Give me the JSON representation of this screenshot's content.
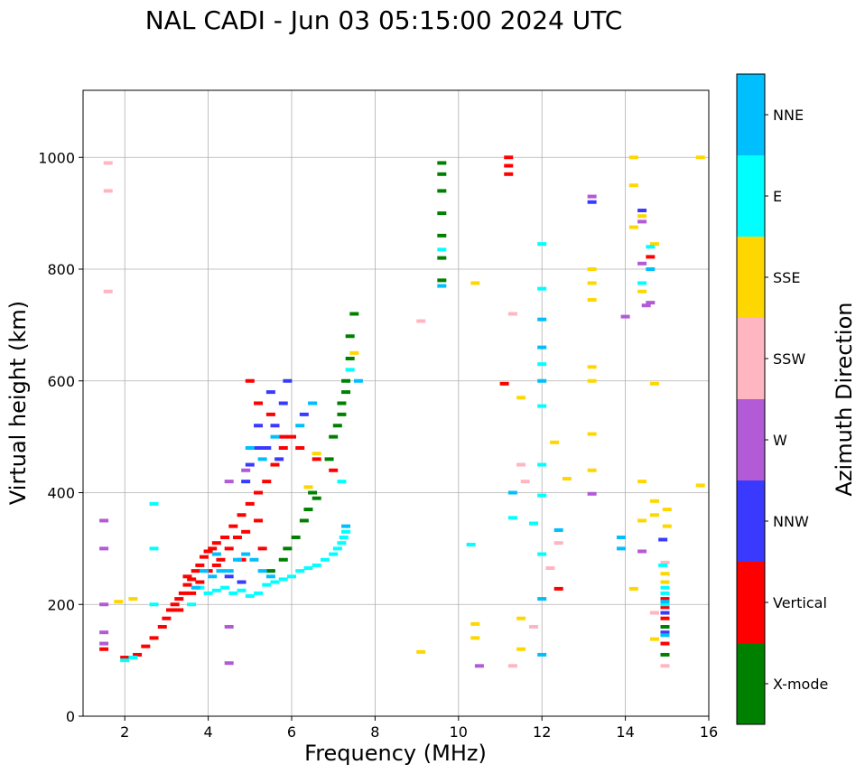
{
  "chart_data": {
    "type": "scatter",
    "title": "NAL CADI - Jun 03 05:15:00 2024 UTC",
    "xlabel": "Frequency (MHz)",
    "ylabel": "Virtual height (km)",
    "xlim": [
      1,
      16
    ],
    "ylim": [
      0,
      1120
    ],
    "xticks": [
      2,
      4,
      6,
      8,
      10,
      12,
      14,
      16
    ],
    "yticks": [
      0,
      200,
      400,
      600,
      800,
      1000
    ],
    "grid": true,
    "colorbar": {
      "label": "Azimuth Direction",
      "categories": [
        {
          "name": "X-mode",
          "color": "#008000"
        },
        {
          "name": "Vertical",
          "color": "#ff0000"
        },
        {
          "name": "NNW",
          "color": "#3a3aff"
        },
        {
          "name": "W",
          "color": "#b35ad6"
        },
        {
          "name": "SSW",
          "color": "#ffb6c1"
        },
        {
          "name": "SSE",
          "color": "#ffd700"
        },
        {
          "name": "E",
          "color": "#00ffff"
        },
        {
          "name": "NNE",
          "color": "#00bfff"
        }
      ]
    },
    "series": [
      {
        "name": "X-mode",
        "points": [
          [
            5.9,
            300
          ],
          [
            6.1,
            320
          ],
          [
            6.3,
            350
          ],
          [
            6.4,
            370
          ],
          [
            6.6,
            390
          ],
          [
            6.9,
            460
          ],
          [
            7.0,
            500
          ],
          [
            7.1,
            520
          ],
          [
            7.2,
            560
          ],
          [
            7.3,
            600
          ],
          [
            7.4,
            640
          ],
          [
            7.4,
            680
          ],
          [
            7.5,
            720
          ],
          [
            5.5,
            260
          ],
          [
            5.8,
            280
          ],
          [
            6.5,
            400
          ],
          [
            7.2,
            540
          ],
          [
            7.3,
            580
          ],
          [
            9.6,
            780
          ],
          [
            9.6,
            820
          ],
          [
            9.6,
            860
          ],
          [
            9.6,
            900
          ],
          [
            9.6,
            940
          ],
          [
            9.6,
            970
          ],
          [
            9.6,
            990
          ],
          [
            14.95,
            110
          ],
          [
            14.95,
            160
          ]
        ]
      },
      {
        "name": "Vertical",
        "points": [
          [
            2.3,
            110
          ],
          [
            2.5,
            125
          ],
          [
            2.7,
            140
          ],
          [
            2.9,
            160
          ],
          [
            3.0,
            175
          ],
          [
            3.1,
            190
          ],
          [
            3.2,
            200
          ],
          [
            3.3,
            210
          ],
          [
            3.4,
            220
          ],
          [
            3.5,
            235
          ],
          [
            3.6,
            245
          ],
          [
            3.7,
            260
          ],
          [
            3.8,
            270
          ],
          [
            3.9,
            285
          ],
          [
            4.0,
            295
          ],
          [
            4.1,
            300
          ],
          [
            4.2,
            310
          ],
          [
            4.4,
            320
          ],
          [
            4.6,
            340
          ],
          [
            4.8,
            360
          ],
          [
            5.0,
            380
          ],
          [
            5.2,
            400
          ],
          [
            5.4,
            420
          ],
          [
            5.6,
            450
          ],
          [
            5.8,
            480
          ],
          [
            6.0,
            500
          ],
          [
            3.3,
            190
          ],
          [
            3.6,
            220
          ],
          [
            3.8,
            240
          ],
          [
            4.0,
            260
          ],
          [
            4.3,
            280
          ],
          [
            4.5,
            300
          ],
          [
            4.7,
            320
          ],
          [
            4.9,
            330
          ],
          [
            5.2,
            350
          ],
          [
            5.0,
            600
          ],
          [
            5.2,
            560
          ],
          [
            5.5,
            540
          ],
          [
            5.8,
            500
          ],
          [
            6.2,
            480
          ],
          [
            6.6,
            460
          ],
          [
            7.0,
            440
          ],
          [
            3.5,
            250
          ],
          [
            4.2,
            270
          ],
          [
            4.8,
            280
          ],
          [
            5.3,
            300
          ],
          [
            11.2,
            985
          ],
          [
            11.2,
            970
          ],
          [
            11.2,
            1000
          ],
          [
            11.1,
            595
          ],
          [
            12.4,
            228
          ],
          [
            14.6,
            822
          ],
          [
            14.95,
            130
          ],
          [
            14.95,
            175
          ],
          [
            14.95,
            195
          ],
          [
            14.95,
            210
          ],
          [
            1.5,
            120
          ],
          [
            2.0,
            105
          ]
        ]
      },
      {
        "name": "NNW",
        "points": [
          [
            4.5,
            250
          ],
          [
            4.8,
            240
          ],
          [
            5.0,
            450
          ],
          [
            5.2,
            520
          ],
          [
            5.4,
            480
          ],
          [
            5.6,
            520
          ],
          [
            5.8,
            560
          ],
          [
            5.2,
            480
          ],
          [
            5.5,
            580
          ],
          [
            5.7,
            460
          ],
          [
            5.9,
            600
          ],
          [
            6.3,
            540
          ],
          [
            4.9,
            420
          ],
          [
            13.2,
            920
          ],
          [
            14.4,
            905
          ],
          [
            14.9,
            316
          ],
          [
            14.95,
            150
          ],
          [
            14.95,
            185
          ]
        ]
      },
      {
        "name": "W",
        "points": [
          [
            1.5,
            350
          ],
          [
            1.5,
            300
          ],
          [
            1.5,
            200
          ],
          [
            1.5,
            150
          ],
          [
            1.5,
            130
          ],
          [
            4.5,
            160
          ],
          [
            4.5,
            95
          ],
          [
            4.9,
            440
          ],
          [
            4.5,
            420
          ],
          [
            10.5,
            90
          ],
          [
            13.2,
            398
          ],
          [
            13.2,
            930
          ],
          [
            14.0,
            715
          ],
          [
            14.4,
            295
          ],
          [
            14.4,
            885
          ],
          [
            14.4,
            810
          ],
          [
            14.5,
            735
          ],
          [
            14.6,
            740
          ]
        ]
      },
      {
        "name": "SSW",
        "points": [
          [
            1.6,
            990
          ],
          [
            1.6,
            940
          ],
          [
            1.6,
            760
          ],
          [
            9.1,
            707
          ],
          [
            11.3,
            720
          ],
          [
            11.5,
            450
          ],
          [
            11.6,
            420
          ],
          [
            11.8,
            160
          ],
          [
            12.2,
            265
          ],
          [
            12.4,
            310
          ],
          [
            14.95,
            275
          ],
          [
            14.95,
            90
          ],
          [
            11.3,
            90
          ],
          [
            14.7,
            185
          ]
        ]
      },
      {
        "name": "SSE",
        "points": [
          [
            1.85,
            205
          ],
          [
            2.2,
            210
          ],
          [
            9.1,
            115
          ],
          [
            10.4,
            165
          ],
          [
            10.4,
            140
          ],
          [
            10.4,
            775
          ],
          [
            11.5,
            570
          ],
          [
            11.5,
            175
          ],
          [
            11.5,
            120
          ],
          [
            12.3,
            490
          ],
          [
            12.6,
            425
          ],
          [
            13.2,
            800
          ],
          [
            13.2,
            775
          ],
          [
            13.2,
            745
          ],
          [
            13.2,
            625
          ],
          [
            13.2,
            600
          ],
          [
            13.2,
            505
          ],
          [
            13.2,
            440
          ],
          [
            14.2,
            1000
          ],
          [
            14.2,
            950
          ],
          [
            14.2,
            875
          ],
          [
            14.2,
            228
          ],
          [
            14.4,
            895
          ],
          [
            14.4,
            760
          ],
          [
            14.4,
            420
          ],
          [
            14.4,
            350
          ],
          [
            14.7,
            595
          ],
          [
            14.7,
            385
          ],
          [
            14.7,
            360
          ],
          [
            14.7,
            138
          ],
          [
            14.7,
            845
          ],
          [
            15.0,
            370
          ],
          [
            15.0,
            340
          ],
          [
            14.95,
            240
          ],
          [
            14.95,
            255
          ],
          [
            15.8,
            1000
          ],
          [
            15.8,
            413
          ],
          [
            6.4,
            410
          ],
          [
            6.6,
            470
          ],
          [
            7.5,
            650
          ]
        ]
      },
      {
        "name": "E",
        "points": [
          [
            2.0,
            100
          ],
          [
            2.2,
            105
          ],
          [
            2.7,
            200
          ],
          [
            2.7,
            300
          ],
          [
            2.7,
            380
          ],
          [
            3.6,
            200
          ],
          [
            3.8,
            230
          ],
          [
            4.0,
            220
          ],
          [
            4.2,
            225
          ],
          [
            4.4,
            230
          ],
          [
            4.6,
            220
          ],
          [
            4.8,
            225
          ],
          [
            5.0,
            215
          ],
          [
            5.2,
            220
          ],
          [
            5.4,
            235
          ],
          [
            5.6,
            240
          ],
          [
            5.8,
            245
          ],
          [
            6.0,
            250
          ],
          [
            6.2,
            260
          ],
          [
            6.4,
            265
          ],
          [
            6.6,
            270
          ],
          [
            6.8,
            280
          ],
          [
            7.0,
            290
          ],
          [
            7.1,
            300
          ],
          [
            7.2,
            310
          ],
          [
            7.25,
            320
          ],
          [
            7.3,
            330
          ],
          [
            9.6,
            835
          ],
          [
            10.3,
            307
          ],
          [
            11.3,
            355
          ],
          [
            11.8,
            345
          ],
          [
            12.0,
            290
          ],
          [
            12.0,
            395
          ],
          [
            12.0,
            450
          ],
          [
            12.0,
            555
          ],
          [
            12.0,
            630
          ],
          [
            12.0,
            765
          ],
          [
            12.0,
            845
          ],
          [
            14.4,
            775
          ],
          [
            14.6,
            840
          ],
          [
            14.9,
            270
          ],
          [
            14.95,
            200
          ],
          [
            14.95,
            220
          ],
          [
            14.95,
            230
          ],
          [
            7.4,
            620
          ],
          [
            7.2,
            420
          ]
        ]
      },
      {
        "name": "NNE",
        "points": [
          [
            4.1,
            250
          ],
          [
            4.3,
            260
          ],
          [
            4.5,
            260
          ],
          [
            4.7,
            280
          ],
          [
            4.9,
            290
          ],
          [
            5.1,
            280
          ],
          [
            5.3,
            260
          ],
          [
            5.5,
            250
          ],
          [
            3.7,
            230
          ],
          [
            3.9,
            260
          ],
          [
            4.2,
            290
          ],
          [
            5.0,
            480
          ],
          [
            5.3,
            460
          ],
          [
            5.6,
            500
          ],
          [
            6.2,
            520
          ],
          [
            6.5,
            560
          ],
          [
            11.3,
            400
          ],
          [
            12.0,
            710
          ],
          [
            12.0,
            660
          ],
          [
            12.0,
            600
          ],
          [
            12.0,
            210
          ],
          [
            12.0,
            110
          ],
          [
            12.4,
            333
          ],
          [
            13.9,
            320
          ],
          [
            13.9,
            300
          ],
          [
            14.6,
            800
          ],
          [
            14.95,
            145
          ],
          [
            14.95,
            205
          ],
          [
            7.3,
            340
          ],
          [
            7.6,
            600
          ],
          [
            9.6,
            770
          ]
        ]
      }
    ]
  }
}
